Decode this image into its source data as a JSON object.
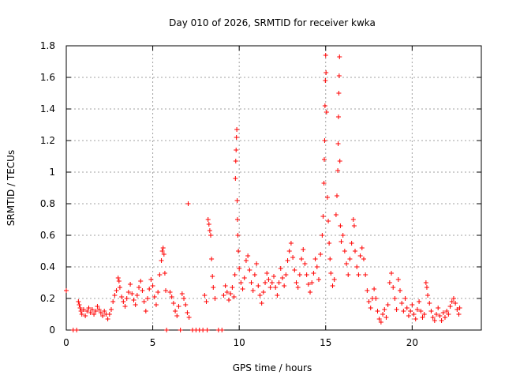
{
  "chart_data": {
    "type": "scatter",
    "title": "Day 010 of 2026, SRMTID for receiver kwka",
    "xlabel": "GPS time / hours",
    "ylabel": "SRMTID / TECUs",
    "xlim": [
      0,
      24
    ],
    "ylim": [
      0,
      1.8
    ],
    "xticks": [
      0,
      5,
      10,
      15,
      20
    ],
    "yticks": [
      0,
      0.2,
      0.4,
      0.6,
      0.8,
      1,
      1.2,
      1.4,
      1.6,
      1.8
    ],
    "xtick_labels": [
      "0",
      "5",
      "10",
      "15",
      "20"
    ],
    "ytick_labels": [
      "0",
      "0.2",
      "0.4",
      "0.6",
      "0.8",
      "1",
      "1.2",
      "1.4",
      "1.6",
      "1.8"
    ],
    "grid": true,
    "marker": "+",
    "color": "#ff0000",
    "series": [
      {
        "name": "SRMTID",
        "points": [
          [
            0.0,
            0.25
          ],
          [
            0.4,
            0.0
          ],
          [
            0.6,
            0.0
          ],
          [
            0.7,
            0.18
          ],
          [
            0.75,
            0.16
          ],
          [
            0.8,
            0.14
          ],
          [
            0.85,
            0.12
          ],
          [
            0.9,
            0.1
          ],
          [
            1.0,
            0.13
          ],
          [
            1.1,
            0.09
          ],
          [
            1.2,
            0.12
          ],
          [
            1.3,
            0.14
          ],
          [
            1.4,
            0.11
          ],
          [
            1.5,
            0.13
          ],
          [
            1.6,
            0.1
          ],
          [
            1.7,
            0.12
          ],
          [
            1.8,
            0.15
          ],
          [
            1.9,
            0.13
          ],
          [
            2.0,
            0.11
          ],
          [
            2.1,
            0.09
          ],
          [
            2.2,
            0.12
          ],
          [
            2.3,
            0.1
          ],
          [
            2.4,
            0.07
          ],
          [
            2.5,
            0.1
          ],
          [
            2.6,
            0.13
          ],
          [
            2.7,
            0.18
          ],
          [
            2.8,
            0.22
          ],
          [
            2.9,
            0.25
          ],
          [
            3.0,
            0.33
          ],
          [
            3.05,
            0.31
          ],
          [
            3.1,
            0.27
          ],
          [
            3.2,
            0.21
          ],
          [
            3.3,
            0.18
          ],
          [
            3.4,
            0.15
          ],
          [
            3.5,
            0.2
          ],
          [
            3.6,
            0.24
          ],
          [
            3.7,
            0.29
          ],
          [
            3.8,
            0.23
          ],
          [
            3.9,
            0.19
          ],
          [
            4.0,
            0.16
          ],
          [
            4.1,
            0.22
          ],
          [
            4.2,
            0.27
          ],
          [
            4.3,
            0.31
          ],
          [
            4.4,
            0.25
          ],
          [
            4.5,
            0.18
          ],
          [
            4.6,
            0.12
          ],
          [
            4.7,
            0.2
          ],
          [
            4.8,
            0.26
          ],
          [
            4.9,
            0.32
          ],
          [
            5.0,
            0.28
          ],
          [
            5.1,
            0.21
          ],
          [
            5.2,
            0.16
          ],
          [
            5.3,
            0.24
          ],
          [
            5.4,
            0.35
          ],
          [
            5.5,
            0.44
          ],
          [
            5.55,
            0.5
          ],
          [
            5.6,
            0.52
          ],
          [
            5.65,
            0.48
          ],
          [
            5.7,
            0.36
          ],
          [
            5.75,
            0.25
          ],
          [
            5.8,
            0.0
          ],
          [
            6.0,
            0.24
          ],
          [
            6.1,
            0.21
          ],
          [
            6.2,
            0.17
          ],
          [
            6.3,
            0.12
          ],
          [
            6.4,
            0.09
          ],
          [
            6.5,
            0.15
          ],
          [
            6.6,
            0.0
          ],
          [
            6.7,
            0.23
          ],
          [
            6.8,
            0.2
          ],
          [
            6.9,
            0.16
          ],
          [
            7.0,
            0.11
          ],
          [
            7.05,
            0.8
          ],
          [
            7.1,
            0.08
          ],
          [
            7.3,
            0.0
          ],
          [
            7.5,
            0.0
          ],
          [
            7.7,
            0.0
          ],
          [
            7.9,
            0.0
          ],
          [
            8.0,
            0.22
          ],
          [
            8.1,
            0.18
          ],
          [
            8.15,
            0.0
          ],
          [
            8.2,
            0.7
          ],
          [
            8.25,
            0.67
          ],
          [
            8.3,
            0.63
          ],
          [
            8.35,
            0.6
          ],
          [
            8.4,
            0.45
          ],
          [
            8.45,
            0.34
          ],
          [
            8.5,
            0.27
          ],
          [
            8.6,
            0.2
          ],
          [
            8.8,
            0.0
          ],
          [
            9.0,
            0.0
          ],
          [
            9.1,
            0.22
          ],
          [
            9.2,
            0.28
          ],
          [
            9.3,
            0.24
          ],
          [
            9.4,
            0.19
          ],
          [
            9.5,
            0.23
          ],
          [
            9.6,
            0.27
          ],
          [
            9.7,
            0.21
          ],
          [
            9.75,
            0.35
          ],
          [
            9.78,
            0.96
          ],
          [
            9.8,
            1.07
          ],
          [
            9.82,
            1.14
          ],
          [
            9.84,
            1.22
          ],
          [
            9.86,
            1.27
          ],
          [
            9.88,
            0.82
          ],
          [
            9.9,
            0.7
          ],
          [
            9.92,
            0.6
          ],
          [
            9.95,
            0.5
          ],
          [
            10.0,
            0.39
          ],
          [
            10.1,
            0.3
          ],
          [
            10.2,
            0.26
          ],
          [
            10.3,
            0.33
          ],
          [
            10.4,
            0.44
          ],
          [
            10.5,
            0.47
          ],
          [
            10.6,
            0.38
          ],
          [
            10.7,
            0.3
          ],
          [
            10.8,
            0.25
          ],
          [
            10.9,
            0.35
          ],
          [
            11.0,
            0.42
          ],
          [
            11.1,
            0.28
          ],
          [
            11.2,
            0.22
          ],
          [
            11.3,
            0.17
          ],
          [
            11.4,
            0.24
          ],
          [
            11.5,
            0.3
          ],
          [
            11.6,
            0.36
          ],
          [
            11.7,
            0.32
          ],
          [
            11.8,
            0.27
          ],
          [
            11.9,
            0.3
          ],
          [
            12.0,
            0.34
          ],
          [
            12.1,
            0.27
          ],
          [
            12.2,
            0.22
          ],
          [
            12.3,
            0.3
          ],
          [
            12.4,
            0.39
          ],
          [
            12.5,
            0.33
          ],
          [
            12.6,
            0.28
          ],
          [
            12.7,
            0.35
          ],
          [
            12.8,
            0.44
          ],
          [
            12.9,
            0.5
          ],
          [
            13.0,
            0.55
          ],
          [
            13.1,
            0.46
          ],
          [
            13.2,
            0.38
          ],
          [
            13.3,
            0.3
          ],
          [
            13.4,
            0.27
          ],
          [
            13.5,
            0.35
          ],
          [
            13.6,
            0.45
          ],
          [
            13.7,
            0.51
          ],
          [
            13.8,
            0.42
          ],
          [
            13.9,
            0.35
          ],
          [
            14.0,
            0.29
          ],
          [
            14.1,
            0.24
          ],
          [
            14.2,
            0.3
          ],
          [
            14.3,
            0.36
          ],
          [
            14.4,
            0.45
          ],
          [
            14.5,
            0.4
          ],
          [
            14.6,
            0.32
          ],
          [
            14.7,
            0.48
          ],
          [
            14.8,
            0.6
          ],
          [
            14.85,
            0.72
          ],
          [
            14.9,
            0.93
          ],
          [
            14.92,
            1.08
          ],
          [
            14.94,
            1.2
          ],
          [
            14.96,
            1.42
          ],
          [
            14.98,
            1.58
          ],
          [
            15.0,
            1.74
          ],
          [
            15.02,
            1.63
          ],
          [
            15.05,
            1.38
          ],
          [
            15.1,
            0.84
          ],
          [
            15.15,
            0.69
          ],
          [
            15.2,
            0.55
          ],
          [
            15.25,
            0.45
          ],
          [
            15.3,
            0.36
          ],
          [
            15.4,
            0.28
          ],
          [
            15.5,
            0.32
          ],
          [
            15.6,
            0.73
          ],
          [
            15.65,
            0.85
          ],
          [
            15.7,
            1.01
          ],
          [
            15.72,
            1.18
          ],
          [
            15.74,
            1.35
          ],
          [
            15.76,
            1.5
          ],
          [
            15.78,
            1.61
          ],
          [
            15.8,
            1.73
          ],
          [
            15.82,
            1.07
          ],
          [
            15.85,
            0.66
          ],
          [
            15.9,
            0.56
          ],
          [
            16.0,
            0.6
          ],
          [
            16.1,
            0.5
          ],
          [
            16.2,
            0.42
          ],
          [
            16.3,
            0.35
          ],
          [
            16.4,
            0.45
          ],
          [
            16.5,
            0.55
          ],
          [
            16.6,
            0.7
          ],
          [
            16.65,
            0.66
          ],
          [
            16.7,
            0.5
          ],
          [
            16.8,
            0.4
          ],
          [
            16.9,
            0.35
          ],
          [
            17.0,
            0.47
          ],
          [
            17.1,
            0.52
          ],
          [
            17.2,
            0.45
          ],
          [
            17.3,
            0.35
          ],
          [
            17.4,
            0.25
          ],
          [
            17.5,
            0.18
          ],
          [
            17.6,
            0.14
          ],
          [
            17.7,
            0.2
          ],
          [
            17.8,
            0.26
          ],
          [
            17.9,
            0.2
          ],
          [
            18.0,
            0.12
          ],
          [
            18.1,
            0.07
          ],
          [
            18.2,
            0.05
          ],
          [
            18.3,
            0.1
          ],
          [
            18.4,
            0.13
          ],
          [
            18.5,
            0.08
          ],
          [
            18.6,
            0.16
          ],
          [
            18.7,
            0.3
          ],
          [
            18.8,
            0.36
          ],
          [
            18.9,
            0.27
          ],
          [
            19.0,
            0.2
          ],
          [
            19.1,
            0.13
          ],
          [
            19.2,
            0.32
          ],
          [
            19.3,
            0.25
          ],
          [
            19.4,
            0.17
          ],
          [
            19.5,
            0.12
          ],
          [
            19.6,
            0.2
          ],
          [
            19.7,
            0.14
          ],
          [
            19.8,
            0.09
          ],
          [
            19.9,
            0.12
          ],
          [
            20.0,
            0.16
          ],
          [
            20.1,
            0.1
          ],
          [
            20.2,
            0.07
          ],
          [
            20.3,
            0.13
          ],
          [
            20.4,
            0.18
          ],
          [
            20.5,
            0.12
          ],
          [
            20.6,
            0.08
          ],
          [
            20.7,
            0.1
          ],
          [
            20.8,
            0.3
          ],
          [
            20.85,
            0.27
          ],
          [
            20.9,
            0.22
          ],
          [
            21.0,
            0.17
          ],
          [
            21.1,
            0.12
          ],
          [
            21.2,
            0.08
          ],
          [
            21.3,
            0.06
          ],
          [
            21.4,
            0.1
          ],
          [
            21.5,
            0.14
          ],
          [
            21.6,
            0.09
          ],
          [
            21.7,
            0.06
          ],
          [
            21.8,
            0.11
          ],
          [
            21.9,
            0.08
          ],
          [
            22.0,
            0.12
          ],
          [
            22.1,
            0.1
          ],
          [
            22.2,
            0.15
          ],
          [
            22.3,
            0.18
          ],
          [
            22.4,
            0.2
          ],
          [
            22.5,
            0.17
          ],
          [
            22.6,
            0.13
          ],
          [
            22.7,
            0.1
          ],
          [
            22.75,
            0.14
          ]
        ]
      }
    ]
  }
}
